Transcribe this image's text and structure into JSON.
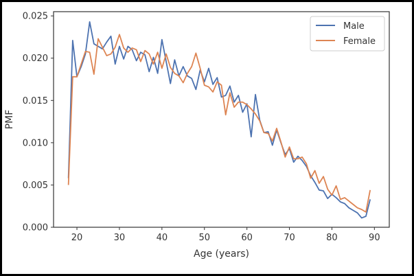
{
  "chart_data": {
    "type": "line",
    "title": "",
    "xlabel": "Age (years)",
    "ylabel": "PMF",
    "xlim": [
      14.5,
      93.5
    ],
    "ylim": [
      0,
      0.0255
    ],
    "x_ticks": [
      20,
      30,
      40,
      50,
      60,
      70,
      80,
      90
    ],
    "x_tick_labels": [
      "20",
      "30",
      "40",
      "50",
      "60",
      "70",
      "80",
      "90"
    ],
    "y_ticks": [
      0,
      0.005,
      0.01,
      0.015,
      0.02,
      0.025
    ],
    "y_tick_labels": [
      "0.000",
      "0.005",
      "0.010",
      "0.015",
      "0.020",
      "0.025"
    ],
    "grid": false,
    "legend_position": "top-right",
    "x": [
      18,
      19,
      20,
      21,
      22,
      23,
      24,
      25,
      26,
      27,
      28,
      29,
      30,
      31,
      32,
      33,
      34,
      35,
      36,
      37,
      38,
      39,
      40,
      41,
      42,
      43,
      44,
      45,
      46,
      47,
      48,
      49,
      50,
      51,
      52,
      53,
      54,
      55,
      56,
      57,
      58,
      59,
      60,
      61,
      62,
      63,
      64,
      65,
      66,
      67,
      68,
      69,
      70,
      71,
      72,
      73,
      74,
      75,
      76,
      77,
      78,
      79,
      80,
      81,
      82,
      83,
      84,
      85,
      86,
      87,
      88,
      89
    ],
    "series": [
      {
        "name": "Male",
        "color": "#4c72b0",
        "values": [
          0.0058,
          0.0221,
          0.0178,
          0.019,
          0.0205,
          0.0243,
          0.0217,
          0.0214,
          0.0211,
          0.0219,
          0.0226,
          0.0193,
          0.0214,
          0.0199,
          0.0214,
          0.021,
          0.0197,
          0.0207,
          0.0204,
          0.0184,
          0.0201,
          0.0182,
          0.0222,
          0.0196,
          0.017,
          0.0198,
          0.0179,
          0.019,
          0.0179,
          0.0176,
          0.0163,
          0.0186,
          0.0172,
          0.0188,
          0.0169,
          0.0177,
          0.0154,
          0.0156,
          0.0167,
          0.0148,
          0.0156,
          0.0136,
          0.0146,
          0.0107,
          0.0157,
          0.0127,
          0.0112,
          0.0113,
          0.0097,
          0.0115,
          0.01,
          0.0086,
          0.0093,
          0.0077,
          0.0084,
          0.0079,
          0.0072,
          0.0061,
          0.0053,
          0.0044,
          0.0043,
          0.0034,
          0.0039,
          0.0035,
          0.003,
          0.0028,
          0.0023,
          0.002,
          0.0017,
          0.0011,
          0.0013,
          0.0033
        ]
      },
      {
        "name": "Female",
        "color": "#dd8452",
        "values": [
          0.005,
          0.0178,
          0.0178,
          0.0193,
          0.0208,
          0.0207,
          0.0181,
          0.0223,
          0.0213,
          0.0203,
          0.0205,
          0.0213,
          0.0228,
          0.0212,
          0.0207,
          0.0212,
          0.021,
          0.0196,
          0.0209,
          0.0205,
          0.0193,
          0.0207,
          0.0188,
          0.0205,
          0.0189,
          0.0182,
          0.0179,
          0.0171,
          0.0182,
          0.019,
          0.0206,
          0.0188,
          0.0168,
          0.0166,
          0.016,
          0.0172,
          0.0168,
          0.0133,
          0.0159,
          0.0142,
          0.0148,
          0.0148,
          0.0145,
          0.014,
          0.0134,
          0.0126,
          0.0112,
          0.0111,
          0.0102,
          0.0117,
          0.0101,
          0.0083,
          0.0095,
          0.0081,
          0.0081,
          0.0083,
          0.0075,
          0.0058,
          0.0067,
          0.0052,
          0.006,
          0.0045,
          0.0038,
          0.0049,
          0.0033,
          0.0035,
          0.0031,
          0.0027,
          0.0023,
          0.0021,
          0.0018,
          0.0044
        ]
      }
    ]
  }
}
